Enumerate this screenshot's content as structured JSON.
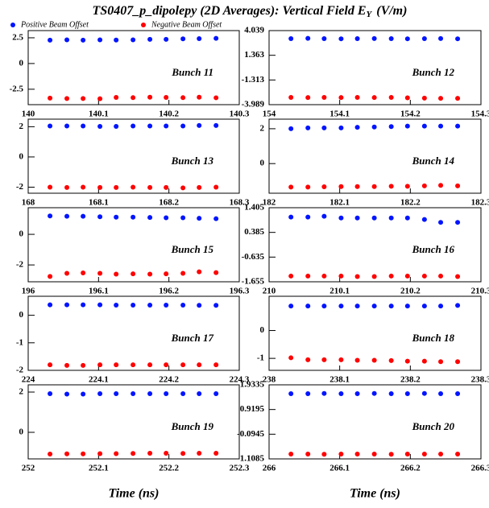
{
  "figure": {
    "title": "TS0407_p_dipolepy (2D Averages): Vertical Field E",
    "title_sub": "Y",
    "title_unit": "(V/m)",
    "legend": [
      "Positive Beam Offset",
      "Negative Beam Offset"
    ],
    "xlabel": "Time (ns)"
  },
  "chart_data": [
    {
      "type": "scatter",
      "annotation": "Bunch 11",
      "xlim": [
        140,
        140.3
      ],
      "xticks": [
        140,
        140.1,
        140.2,
        140.3
      ],
      "ylim": [
        -4,
        3.2
      ],
      "yticks": [
        2.5,
        0,
        -2.5
      ],
      "x": [
        140.031,
        140.055,
        140.078,
        140.102,
        140.125,
        140.149,
        140.173,
        140.196,
        140.22,
        140.243,
        140.267
      ],
      "series": [
        {
          "color": "#0014ff",
          "values": [
            2.27,
            2.3,
            2.27,
            2.3,
            2.28,
            2.3,
            2.35,
            2.35,
            2.4,
            2.42,
            2.45
          ]
        },
        {
          "color": "#ff0000",
          "values": [
            -3.36,
            -3.4,
            -3.4,
            -3.42,
            -3.3,
            -3.32,
            -3.28,
            -3.3,
            -3.32,
            -3.28,
            -3.33
          ]
        }
      ]
    },
    {
      "type": "scatter",
      "annotation": "Bunch 12",
      "xlim": [
        154,
        154.3
      ],
      "xticks": [
        154,
        154.1,
        154.2,
        154.3
      ],
      "ylim": [
        -3.989,
        4.039
      ],
      "yticks": [
        4.039,
        1.363,
        -1.313,
        -3.989
      ],
      "x": [
        154.031,
        154.055,
        154.078,
        154.102,
        154.125,
        154.149,
        154.173,
        154.196,
        154.22,
        154.243,
        154.267
      ],
      "series": [
        {
          "color": "#0014ff",
          "values": [
            3.17,
            3.2,
            3.17,
            3.15,
            3.17,
            3.18,
            3.17,
            3.15,
            3.17,
            3.18,
            3.15
          ]
        },
        {
          "color": "#ff0000",
          "values": [
            -3.2,
            -3.22,
            -3.2,
            -3.22,
            -3.2,
            -3.22,
            -3.2,
            -3.25,
            -3.28,
            -3.3,
            -3.3
          ]
        }
      ]
    },
    {
      "type": "scatter",
      "annotation": "Bunch 13",
      "xlim": [
        168,
        168.3
      ],
      "xticks": [
        168,
        168.1,
        168.2,
        168.3
      ],
      "ylim": [
        -2.4,
        2.5
      ],
      "yticks": [
        2,
        0,
        -2
      ],
      "x": [
        168.031,
        168.055,
        168.078,
        168.102,
        168.125,
        168.149,
        168.173,
        168.196,
        168.22,
        168.243,
        168.267
      ],
      "series": [
        {
          "color": "#0014ff",
          "values": [
            2.05,
            2.05,
            2.05,
            2.02,
            2.02,
            2.05,
            2.05,
            2.05,
            2.05,
            2.08,
            2.08
          ]
        },
        {
          "color": "#ff0000",
          "values": [
            -2,
            -2.02,
            -2,
            -2.02,
            -2.02,
            -2,
            -2.02,
            -2.02,
            -2.05,
            -2.02,
            -2
          ]
        }
      ]
    },
    {
      "type": "scatter",
      "annotation": "Bunch 14",
      "xlim": [
        182,
        182.3
      ],
      "xticks": [
        182,
        182.1,
        182.2,
        182.3
      ],
      "ylim": [
        -1.7,
        2.55
      ],
      "yticks": [
        2,
        0
      ],
      "x": [
        182.031,
        182.055,
        182.078,
        182.102,
        182.125,
        182.149,
        182.173,
        182.196,
        182.22,
        182.243,
        182.267
      ],
      "series": [
        {
          "color": "#0014ff",
          "values": [
            2,
            2.05,
            2.05,
            2.05,
            2.08,
            2.1,
            2.12,
            2.15,
            2.15,
            2.15,
            2.15
          ]
        },
        {
          "color": "#ff0000",
          "values": [
            -1.35,
            -1.35,
            -1.33,
            -1.32,
            -1.32,
            -1.32,
            -1.3,
            -1.3,
            -1.28,
            -1.25,
            -1.28
          ]
        }
      ]
    },
    {
      "type": "scatter",
      "annotation": "Bunch 15",
      "xlim": [
        196,
        196.3
      ],
      "xticks": [
        196,
        196.1,
        196.2,
        196.3
      ],
      "ylim": [
        -3.1,
        1.74
      ],
      "yticks": [
        0,
        -2
      ],
      "x": [
        196.031,
        196.055,
        196.078,
        196.102,
        196.125,
        196.149,
        196.173,
        196.196,
        196.22,
        196.243,
        196.267
      ],
      "series": [
        {
          "color": "#0014ff",
          "values": [
            1.2,
            1.18,
            1.18,
            1.15,
            1.12,
            1.12,
            1.1,
            1.08,
            1.08,
            1.05,
            1.02
          ]
        },
        {
          "color": "#ff0000",
          "values": [
            -2.75,
            -2.55,
            -2.52,
            -2.55,
            -2.6,
            -2.58,
            -2.6,
            -2.58,
            -2.55,
            -2.45,
            -2.5
          ]
        }
      ]
    },
    {
      "type": "scatter",
      "annotation": "Bunch 16",
      "xlim": [
        210,
        210.3
      ],
      "xticks": [
        210,
        210.1,
        210.2,
        210.3
      ],
      "ylim": [
        -1.655,
        1.405
      ],
      "yticks": [
        1.405,
        0.385,
        -0.635,
        -1.655
      ],
      "x": [
        210.031,
        210.055,
        210.078,
        210.102,
        210.125,
        210.149,
        210.173,
        210.196,
        210.22,
        210.243,
        210.267
      ],
      "series": [
        {
          "color": "#0014ff",
          "values": [
            1.02,
            1.02,
            1.05,
            0.98,
            0.98,
            0.98,
            0.98,
            0.98,
            0.92,
            0.8,
            0.8
          ]
        },
        {
          "color": "#ff0000",
          "values": [
            -1.42,
            -1.42,
            -1.42,
            -1.42,
            -1.44,
            -1.44,
            -1.42,
            -1.42,
            -1.42,
            -1.42,
            -1.44
          ]
        }
      ]
    },
    {
      "type": "scatter",
      "annotation": "Bunch 17",
      "xlim": [
        224,
        224.3
      ],
      "xticks": [
        224,
        224.1,
        224.2,
        224.3
      ],
      "ylim": [
        -2,
        0.69
      ],
      "yticks": [
        0,
        -1,
        -2
      ],
      "x": [
        224.031,
        224.055,
        224.078,
        224.102,
        224.125,
        224.149,
        224.173,
        224.196,
        224.22,
        224.243,
        224.267
      ],
      "series": [
        {
          "color": "#0014ff",
          "values": [
            0.38,
            0.38,
            0.38,
            0.38,
            0.37,
            0.37,
            0.37,
            0.37,
            0.37,
            0.36,
            0.36
          ]
        },
        {
          "color": "#ff0000",
          "values": [
            -1.8,
            -1.82,
            -1.82,
            -1.8,
            -1.8,
            -1.8,
            -1.8,
            -1.8,
            -1.8,
            -1.8,
            -1.8
          ]
        }
      ]
    },
    {
      "type": "scatter",
      "annotation": "Bunch 18",
      "xlim": [
        238,
        238.3
      ],
      "xticks": [
        238,
        238.1,
        238.2,
        238.3
      ],
      "ylim": [
        -1.43,
        1.23
      ],
      "yticks": [
        0,
        -1
      ],
      "x": [
        238.031,
        238.055,
        238.078,
        238.102,
        238.125,
        238.149,
        238.173,
        238.196,
        238.22,
        238.243,
        238.267
      ],
      "series": [
        {
          "color": "#0014ff",
          "values": [
            0.88,
            0.88,
            0.88,
            0.88,
            0.88,
            0.88,
            0.88,
            0.88,
            0.88,
            0.88,
            0.9
          ]
        },
        {
          "color": "#ff0000",
          "values": [
            -0.98,
            -1.05,
            -1.05,
            -1.05,
            -1.07,
            -1.07,
            -1.08,
            -1.1,
            -1.1,
            -1.12,
            -1.12
          ]
        }
      ]
    },
    {
      "type": "scatter",
      "annotation": "Bunch 19",
      "xlim": [
        252,
        252.3
      ],
      "xticks": [
        252,
        252.1,
        252.2,
        252.3
      ],
      "ylim": [
        -1.32,
        2.36
      ],
      "yticks": [
        2,
        0
      ],
      "x": [
        252.031,
        252.055,
        252.078,
        252.102,
        252.125,
        252.149,
        252.173,
        252.196,
        252.22,
        252.243,
        252.267
      ],
      "series": [
        {
          "color": "#0014ff",
          "values": [
            1.92,
            1.9,
            1.9,
            1.92,
            1.92,
            1.92,
            1.92,
            1.92,
            1.92,
            1.92,
            1.92
          ]
        },
        {
          "color": "#ff0000",
          "values": [
            -1.08,
            -1.07,
            -1.07,
            -1.06,
            -1.06,
            -1.05,
            -1.04,
            -1.04,
            -1.05,
            -1.04,
            -1.04
          ]
        }
      ]
    },
    {
      "type": "scatter",
      "annotation": "Bunch 20",
      "xlim": [
        266,
        266.3
      ],
      "xticks": [
        266,
        266.1,
        266.2,
        266.3
      ],
      "ylim": [
        -1.1085,
        1.9335
      ],
      "yticks": [
        1.9335,
        0.9195,
        -0.0945,
        -1.1085
      ],
      "x": [
        266.031,
        266.055,
        266.078,
        266.102,
        266.125,
        266.149,
        266.173,
        266.196,
        266.22,
        266.243,
        266.267
      ],
      "series": [
        {
          "color": "#0014ff",
          "values": [
            1.57,
            1.57,
            1.58,
            1.57,
            1.57,
            1.58,
            1.57,
            1.57,
            1.58,
            1.57,
            1.57
          ]
        },
        {
          "color": "#ff0000",
          "values": [
            -0.91,
            -0.91,
            -0.92,
            -0.91,
            -0.91,
            -0.91,
            -0.92,
            -0.91,
            -0.91,
            -0.91,
            -0.91
          ]
        }
      ]
    }
  ]
}
